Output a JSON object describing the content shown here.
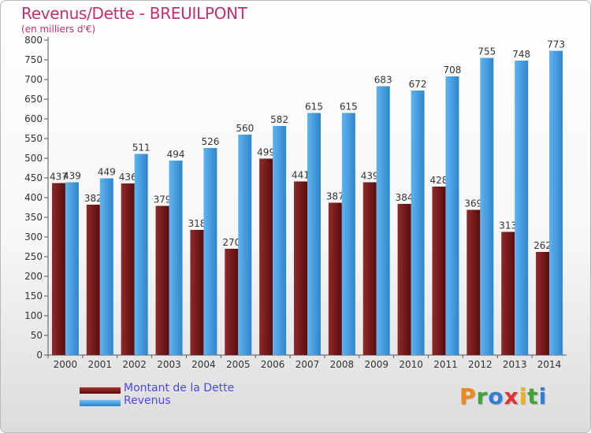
{
  "chart_data": {
    "type": "bar",
    "title": "Revenus/Dette - BREUILPONT",
    "subtitle": "(en milliers d'€)",
    "categories": [
      "2000",
      "2001",
      "2002",
      "2003",
      "2004",
      "2005",
      "2006",
      "2007",
      "2008",
      "2009",
      "2010",
      "2011",
      "2012",
      "2013",
      "2014"
    ],
    "series": [
      {
        "name": "Montant de la Dette",
        "color": "#7a1a1a",
        "values": [
          437,
          382,
          436,
          379,
          318,
          270,
          499,
          441,
          387,
          439,
          384,
          428,
          369,
          313,
          262
        ]
      },
      {
        "name": "Revenus",
        "color": "#3d9be0",
        "values": [
          439,
          449,
          511,
          494,
          526,
          560,
          582,
          615,
          615,
          683,
          672,
          708,
          755,
          748,
          773
        ]
      }
    ],
    "ylim": [
      0,
      800
    ],
    "ytick_step": 50,
    "grid": false,
    "legend_position": "bottom-left"
  },
  "logo": {
    "letters": [
      "P",
      "r",
      "o",
      "x",
      "i",
      "t",
      "i"
    ],
    "colors": [
      "#f08a1c",
      "#3fa535",
      "#2f7fd6",
      "#e03434",
      "#f0b21c",
      "#3fa535",
      "#2f7fd6"
    ]
  }
}
